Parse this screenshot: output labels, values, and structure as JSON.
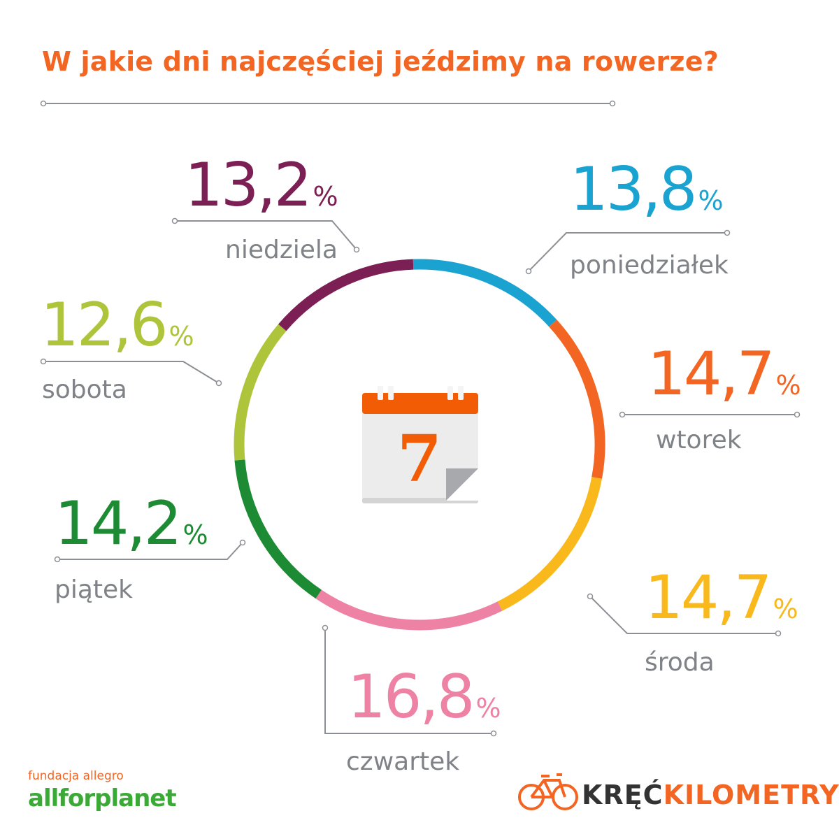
{
  "title": "W jakie dni najczęściej jeździmy na rowerze?",
  "chart_data": {
    "type": "pie",
    "title": "W jakie dni najczęściej jeździmy na rowerze?",
    "unit": "%",
    "center_icon": "calendar-icon",
    "center_icon_text": "7",
    "slices": [
      {
        "label": "poniedziałek",
        "value": 13.8,
        "value_text": "13,8",
        "color": "#1aa3d1"
      },
      {
        "label": "wtorek",
        "value": 14.7,
        "value_text": "14,7",
        "color": "#f26522"
      },
      {
        "label": "środa",
        "value": 14.7,
        "value_text": "14,7",
        "color": "#f9b91c"
      },
      {
        "label": "czwartek",
        "value": 16.8,
        "value_text": "16,8",
        "color": "#ee82a4"
      },
      {
        "label": "piątek",
        "value": 14.2,
        "value_text": "14,2",
        "color": "#1c8b33"
      },
      {
        "label": "sobota",
        "value": 12.6,
        "value_text": "12,6",
        "color": "#aec43b"
      },
      {
        "label": "niedziela",
        "value": 13.2,
        "value_text": "13,2",
        "color": "#7c1f55"
      }
    ]
  },
  "brands": {
    "left_small": "fundacja allegro",
    "left_big": "allforplanet",
    "right_word1": "KRĘĆ",
    "right_word2": "KILOMETRY",
    "right_icon": "bicycle-icon"
  },
  "colors": {
    "title": "#f26522",
    "day_label": "#7f8287",
    "line": "#8c8f94"
  }
}
